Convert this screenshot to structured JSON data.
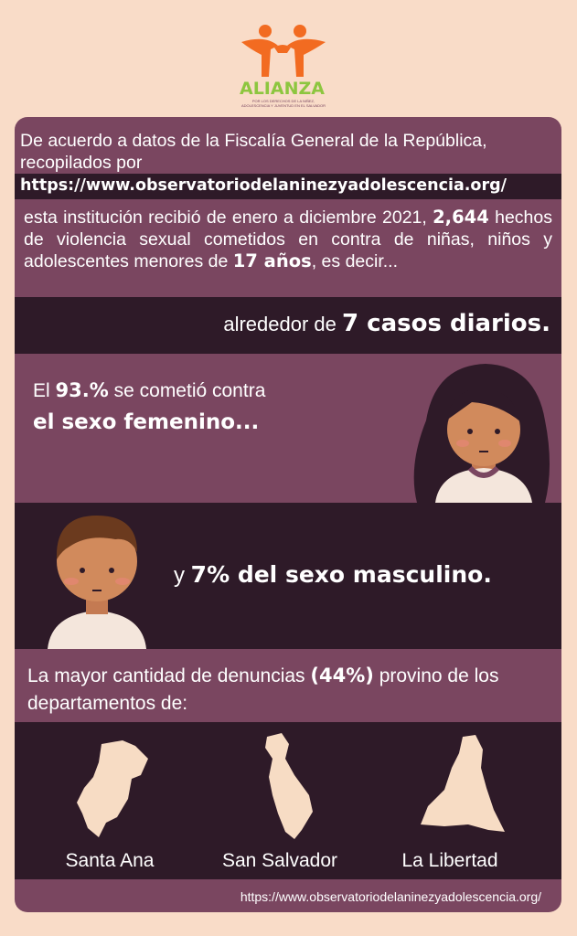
{
  "logo": {
    "name": "ALIANZA",
    "tagline": "POR LOS DERECHOS DE LA NIÑEZ, ADOLESCENCIA Y JUVENTUD EN EL SALVADOR"
  },
  "intro": {
    "text": "De acuerdo a datos de la Fiscalía General de la República, recopilados por",
    "url": "https://www.observatoriodelaninezyadolescencia.org/"
  },
  "summary": {
    "parts": [
      "esta institución recibió de enero a diciembre 2021,",
      "2,644",
      "hechos de violencia sexual cometidos en contra de niñas, niños y adolescentes menores de",
      "17 años",
      ", es decir..."
    ]
  },
  "daily": {
    "parts": [
      "alrededor de",
      "7 casos diarios."
    ]
  },
  "female": {
    "parts": [
      "El",
      "93.%",
      "se cometió contra",
      "el sexo femenino..."
    ]
  },
  "male": {
    "parts": [
      "y",
      "7% del sexo masculino."
    ]
  },
  "departments": {
    "parts": [
      "La mayor cantidad de denuncias",
      "(44%)",
      "provino de los departamentos de:"
    ],
    "names": [
      "Santa Ana",
      "San Salvador",
      "La Libertad"
    ]
  },
  "footer": {
    "url": "https://www.observatoriodelaninezyadolescencia.org/"
  }
}
